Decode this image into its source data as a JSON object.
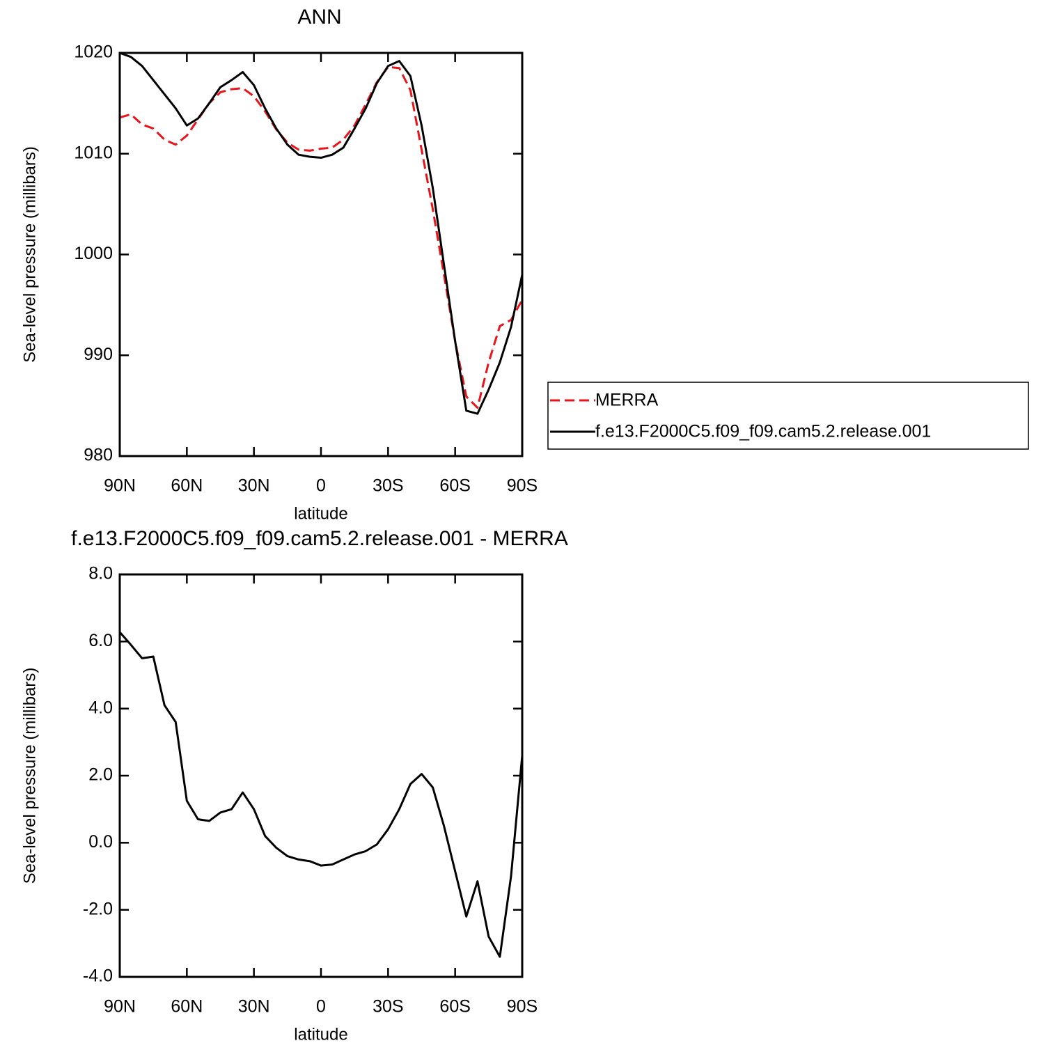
{
  "chart_data": [
    {
      "type": "line",
      "title": "ANN",
      "xlabel": "latitude",
      "ylabel": "Sea-level pressure (millibars)",
      "x": [
        90,
        85,
        80,
        75,
        70,
        65,
        60,
        55,
        50,
        45,
        40,
        35,
        30,
        25,
        20,
        15,
        10,
        5,
        0,
        -5,
        -10,
        -15,
        -20,
        -25,
        -30,
        -35,
        -40,
        -45,
        -50,
        -55,
        -60,
        -65,
        -70,
        -75,
        -80,
        -85,
        -90
      ],
      "series": [
        {
          "name": "MERRA",
          "color": "#e8141c",
          "style": "dashed",
          "values": [
            1013.6,
            1013.9,
            1012.9,
            1012.5,
            1011.4,
            1010.9,
            1011.8,
            1013.4,
            1015.0,
            1016.1,
            1016.4,
            1016.5,
            1015.7,
            1014.2,
            1012.4,
            1011.1,
            1010.4,
            1010.3,
            1010.5,
            1010.6,
            1011.4,
            1012.8,
            1014.9,
            1017.1,
            1018.6,
            1018.5,
            1016.3,
            1010.4,
            1004.5,
            998.0,
            991.4,
            985.9,
            984.8,
            989.3,
            992.9,
            993.5,
            995.5
          ]
        },
        {
          "name": "f.e13.F2000C5.f09_f09.cam5.2.release.001",
          "color": "#000000",
          "style": "solid",
          "values": [
            1020.0,
            1019.6,
            1018.7,
            1017.3,
            1015.9,
            1014.5,
            1012.8,
            1013.5,
            1015.0,
            1016.6,
            1017.3,
            1018.1,
            1016.8,
            1014.5,
            1012.5,
            1010.9,
            1009.9,
            1009.7,
            1009.6,
            1009.9,
            1010.6,
            1012.5,
            1014.5,
            1017.0,
            1018.7,
            1019.2,
            1017.7,
            1012.8,
            1006.6,
            999.0,
            991.4,
            984.5,
            984.2,
            986.6,
            989.3,
            992.8,
            998.0
          ]
        }
      ],
      "xlim": [
        90,
        -90
      ],
      "xticks": [
        {
          "value": 90,
          "label": "90N"
        },
        {
          "value": 60,
          "label": "60N"
        },
        {
          "value": 30,
          "label": "30N"
        },
        0,
        {
          "value": -30,
          "label": "30S"
        },
        {
          "value": -60,
          "label": "60S"
        },
        {
          "value": -90,
          "label": "90S"
        }
      ],
      "ylim": [
        980,
        1020
      ],
      "yticks": [
        980,
        990,
        1000,
        1010,
        1020
      ],
      "legend": "right"
    },
    {
      "type": "line",
      "title": "f.e13.F2000C5.f09_f09.cam5.2.release.001 - MERRA",
      "xlabel": "latitude",
      "ylabel": "Sea-level pressure (millibars)",
      "x": [
        90,
        85,
        80,
        75,
        70,
        65,
        60,
        55,
        50,
        45,
        40,
        35,
        30,
        25,
        20,
        15,
        10,
        5,
        0,
        -5,
        -10,
        -15,
        -20,
        -25,
        -30,
        -35,
        -40,
        -45,
        -50,
        -55,
        -60,
        -65,
        -70,
        -75,
        -80,
        -85,
        -90
      ],
      "series": [
        {
          "color": "#000000",
          "style": "solid",
          "values": [
            6.28,
            5.9,
            5.5,
            5.55,
            4.1,
            3.6,
            1.25,
            0.7,
            0.65,
            0.9,
            1.0,
            1.5,
            1.0,
            0.2,
            -0.15,
            -0.4,
            -0.5,
            -0.55,
            -0.68,
            -0.65,
            -0.5,
            -0.35,
            -0.25,
            -0.05,
            0.4,
            1.0,
            1.75,
            2.05,
            1.65,
            0.5,
            -0.85,
            -2.2,
            -1.15,
            -2.8,
            -3.4,
            -1.0,
            2.6
          ]
        }
      ],
      "xlim": [
        90,
        -90
      ],
      "xticks": [
        {
          "value": 90,
          "label": "90N"
        },
        {
          "value": 60,
          "label": "60N"
        },
        {
          "value": 30,
          "label": "30N"
        },
        0,
        {
          "value": -30,
          "label": "30S"
        },
        {
          "value": -60,
          "label": "60S"
        },
        {
          "value": -90,
          "label": "90S"
        }
      ],
      "ylim": [
        -4,
        8
      ],
      "yticks": [
        {
          "value": -4,
          "label": "-4.0"
        },
        {
          "value": -2,
          "label": "-2.0"
        },
        {
          "value": 0,
          "label": "0.0"
        },
        {
          "value": 2,
          "label": "2.0"
        },
        {
          "value": 4,
          "label": "4.0"
        },
        {
          "value": 6,
          "label": "6.0"
        },
        {
          "value": 8,
          "label": "8.0"
        }
      ]
    }
  ]
}
